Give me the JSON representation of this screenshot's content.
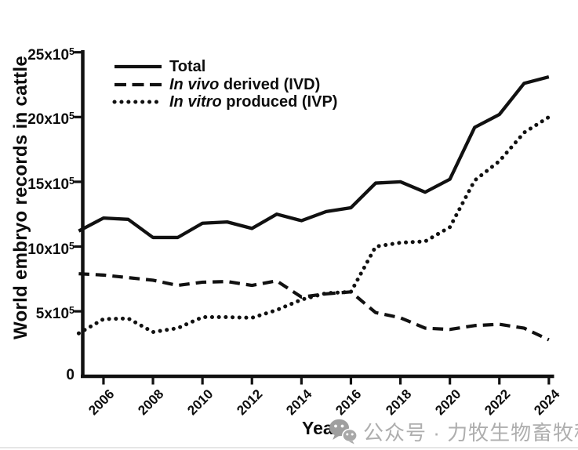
{
  "figure": {
    "y_axis_title": "World embryo records in cattle",
    "x_axis_title": "Year",
    "line_color": "#111111",
    "y_tick_labels": [
      {
        "v": 25,
        "base": "25x10",
        "sup": "5"
      },
      {
        "v": 20,
        "base": "20x10",
        "sup": "5"
      },
      {
        "v": 15,
        "base": "15x10",
        "sup": "5"
      },
      {
        "v": 10,
        "base": "10x10",
        "sup": "5"
      },
      {
        "v": 5,
        "base": "5x10",
        "sup": "5"
      },
      {
        "v": 0,
        "base": "0",
        "sup": ""
      }
    ],
    "x_tick_years": [
      2006,
      2008,
      2010,
      2012,
      2014,
      2016,
      2018,
      2020,
      2022,
      2024
    ],
    "legend": [
      {
        "swatch": "solid-line",
        "italic": "",
        "text": "Total"
      },
      {
        "swatch": "dashed-line",
        "italic": "In vivo",
        "text": " derived (IVD)"
      },
      {
        "swatch": "dotted-line",
        "italic": "In vitro",
        "text": " produced (IVP)"
      }
    ]
  },
  "watermark": {
    "icon": "wechat-icon",
    "text": "公众号 · 力牧生物畜牧种业",
    "color": "#aeaeae"
  },
  "chart_data": {
    "type": "line",
    "title": "",
    "xlabel": "Year",
    "ylabel": "World embryo records in cattle",
    "y_unit_note": "values in units of 10^5 records (axis labeled Nx10⁵)",
    "ylim": [
      0,
      25
    ],
    "grid": false,
    "legend_position": "top-left-inside",
    "x": [
      2005,
      2006,
      2007,
      2008,
      2009,
      2010,
      2011,
      2012,
      2013,
      2014,
      2015,
      2016,
      2017,
      2018,
      2019,
      2020,
      2021,
      2022,
      2023,
      2024
    ],
    "x_tick_labels": [
      "2006",
      "2008",
      "2010",
      "2012",
      "2014",
      "2016",
      "2018",
      "2020",
      "2022",
      "2024"
    ],
    "series": [
      {
        "name": "Total",
        "style": "solid",
        "values": [
          11.2,
          12.2,
          12.1,
          10.7,
          10.7,
          11.8,
          11.9,
          11.4,
          12.5,
          12.0,
          12.7,
          13.0,
          14.9,
          15.0,
          14.2,
          15.2,
          19.2,
          20.2,
          22.6,
          23.1
        ]
      },
      {
        "name": "In vivo derived (IVD)",
        "style": "dashed",
        "values": [
          7.9,
          7.8,
          7.6,
          7.4,
          7.0,
          7.25,
          7.3,
          7.0,
          7.35,
          6.1,
          6.35,
          6.5,
          4.9,
          4.5,
          3.7,
          3.6,
          3.9,
          4.0,
          3.7,
          2.8
        ]
      },
      {
        "name": "In vitro produced (IVP)",
        "style": "dotted",
        "values": [
          3.3,
          4.4,
          4.45,
          3.4,
          3.7,
          4.55,
          4.55,
          4.5,
          5.1,
          5.9,
          6.4,
          6.5,
          10.0,
          10.3,
          10.4,
          11.5,
          15.1,
          16.6,
          18.8,
          20.0
        ]
      }
    ]
  }
}
